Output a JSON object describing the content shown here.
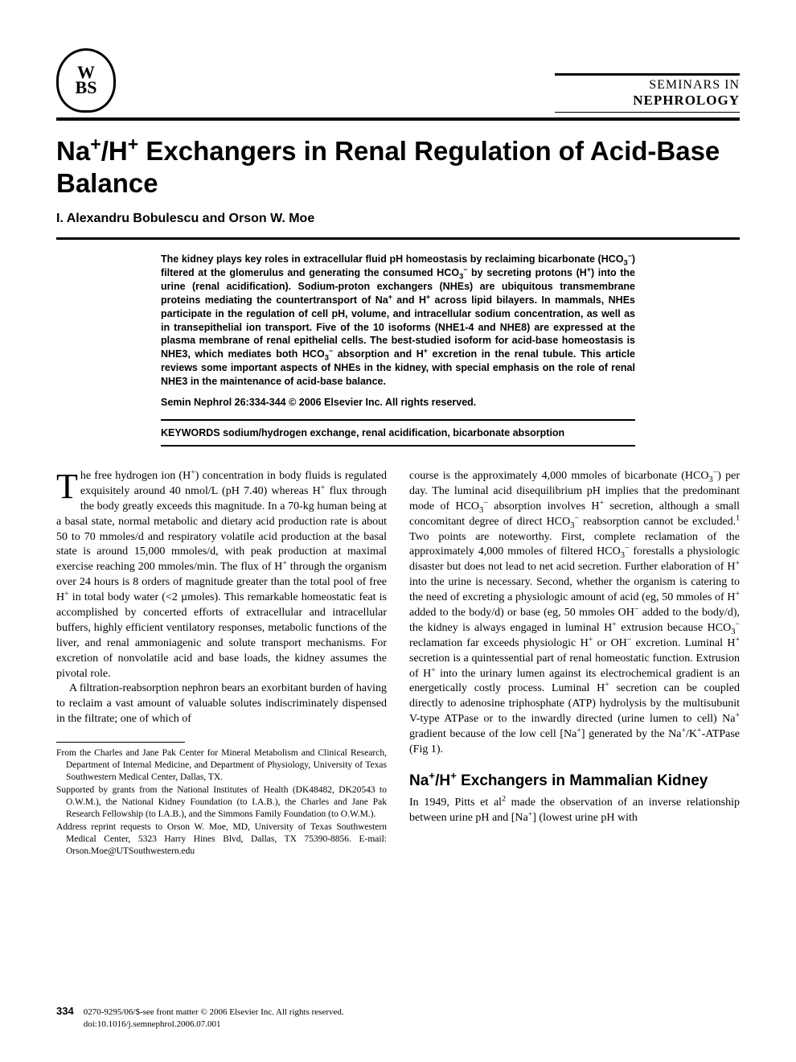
{
  "journal": {
    "logo_text": "W\nBS",
    "line1": "SEMINARS IN",
    "line2": "NEPHROLOGY"
  },
  "article": {
    "title_html": "Na<sup>+</sup>/H<sup>+</sup> Exchangers in Renal Regulation of Acid-Base Balance",
    "authors": "I. Alexandru Bobulescu and Orson W. Moe",
    "abstract_html": "The kidney plays key roles in extracellular fluid pH homeostasis by reclaiming bicarbonate (HCO<sub>3</sub><sup>−</sup>) filtered at the glomerulus and generating the consumed HCO<sub>3</sub><sup>−</sup> by secreting protons (H<sup>+</sup>) into the urine (renal acidification). Sodium-proton exchangers (NHEs) are ubiquitous transmembrane proteins mediating the countertransport of Na<sup>+</sup> and H<sup>+</sup> across lipid bilayers. In mammals, NHEs participate in the regulation of cell pH, volume, and intracellular sodium concentration, as well as in transepithelial ion transport. Five of the 10 isoforms (NHE1-4 and NHE8) are expressed at the plasma membrane of renal epithelial cells. The best-studied isoform for acid-base homeostasis is NHE3, which mediates both HCO<sub>3</sub><sup>−</sup> absorption and H<sup>+</sup> excretion in the renal tubule. This article reviews some important aspects of NHEs in the kidney, with special emphasis on the role of renal NHE3 in the maintenance of acid-base balance.",
    "copyright": "Semin Nephrol 26:334-344 © 2006 Elsevier Inc. All rights reserved.",
    "keywords_label": "KEYWORDS",
    "keywords": "sodium/hydrogen exchange, renal acidification, bicarbonate absorption"
  },
  "body": {
    "left_col": {
      "dropcap": "T",
      "p1_html": "he free hydrogen ion (H<sup>+</sup>) concentration in body fluids is regulated exquisitely around 40 nmol/L (pH 7.40) whereas H<sup>+</sup> flux through the body greatly exceeds this magnitude. In a 70-kg human being at a basal state, normal metabolic and dietary acid production rate is about 50 to 70 mmoles/d and respiratory volatile acid production at the basal state is around 15,000 mmoles/d, with peak production at maximal exercise reaching 200 mmoles/min. The flux of H<sup>+</sup> through the organism over 24 hours is 8 orders of magnitude greater than the total pool of free H<sup>+</sup> in total body water (<2 µmoles). This remarkable homeostatic feat is accomplished by concerted efforts of extracellular and intracellular buffers, highly efficient ventilatory responses, metabolic functions of the liver, and renal ammoniagenic and solute transport mechanisms. For excretion of nonvolatile acid and base loads, the kidney assumes the pivotal role.",
      "p2_html": "A filtration-reabsorption nephron bears an exorbitant burden of having to reclaim a vast amount of valuable solutes indiscriminately dispensed in the filtrate; one of which of"
    },
    "footnotes": {
      "f1": "From the Charles and Jane Pak Center for Mineral Metabolism and Clinical Research, Department of Internal Medicine, and Department of Physiology, University of Texas Southwestern Medical Center, Dallas, TX.",
      "f2": "Supported by grants from the National Institutes of Health (DK48482, DK20543 to O.W.M.), the National Kidney Foundation (to I.A.B.), the Charles and Jane Pak Research Fellowship (to I.A.B.), and the Simmons Family Foundation (to O.W.M.).",
      "f3": "Address reprint requests to Orson W. Moe, MD, University of Texas Southwestern Medical Center, 5323 Harry Hines Blvd, Dallas, TX 75390-8856. E-mail: Orson.Moe@UTSouthwestern.edu"
    },
    "right_col": {
      "p1_html": "course is the approximately 4,000 mmoles of bicarbonate (HCO<sub>3</sub><sup>−</sup>) per day. The luminal acid disequilibrium pH implies that the predominant mode of HCO<sub>3</sub><sup>−</sup> absorption involves H<sup>+</sup> secretion, although a small concomitant degree of direct HCO<sub>3</sub><sup>−</sup> reabsorption cannot be excluded.<sup>1</sup> Two points are noteworthy. First, complete reclamation of the approximately 4,000 mmoles of filtered HCO<sub>3</sub><sup>−</sup> forestalls a physiologic disaster but does not lead to net acid secretion. Further elaboration of H<sup>+</sup> into the urine is necessary. Second, whether the organism is catering to the need of excreting a physiologic amount of acid (eg, 50 mmoles of H<sup>+</sup> added to the body/d) or base (eg, 50 mmoles OH<sup>−</sup> added to the body/d), the kidney is always engaged in luminal H<sup>+</sup> extrusion because HCO<sub>3</sub><sup>−</sup> reclamation far exceeds physiologic H<sup>+</sup> or OH<sup>−</sup> excretion. Luminal H<sup>+</sup> secretion is a quintessential part of renal homeostatic function. Extrusion of H<sup>+</sup> into the urinary lumen against its electrochemical gradient is an energetically costly process. Luminal H<sup>+</sup> secretion can be coupled directly to adenosine triphosphate (ATP) hydrolysis by the multisubunit V-type ATPase or to the inwardly directed (urine lumen to cell) Na<sup>+</sup> gradient because of the low cell [Na<sup>+</sup>] generated by the Na<sup>+</sup>/K<sup>+</sup>-ATPase (Fig 1).",
      "section_head_html": "Na<sup>+</sup>/H<sup>+</sup> Exchangers in Mammalian Kidney",
      "p2_html": "In 1949, Pitts et al<sup>2</sup> made the observation of an inverse relationship between urine pH and [Na<sup>+</sup>] (lowest urine pH with"
    }
  },
  "footer": {
    "page_num": "334",
    "line1": "0270-9295/06/$-see front matter © 2006 Elsevier Inc. All rights reserved.",
    "line2": "doi:10.1016/j.semnephrol.2006.07.001"
  }
}
